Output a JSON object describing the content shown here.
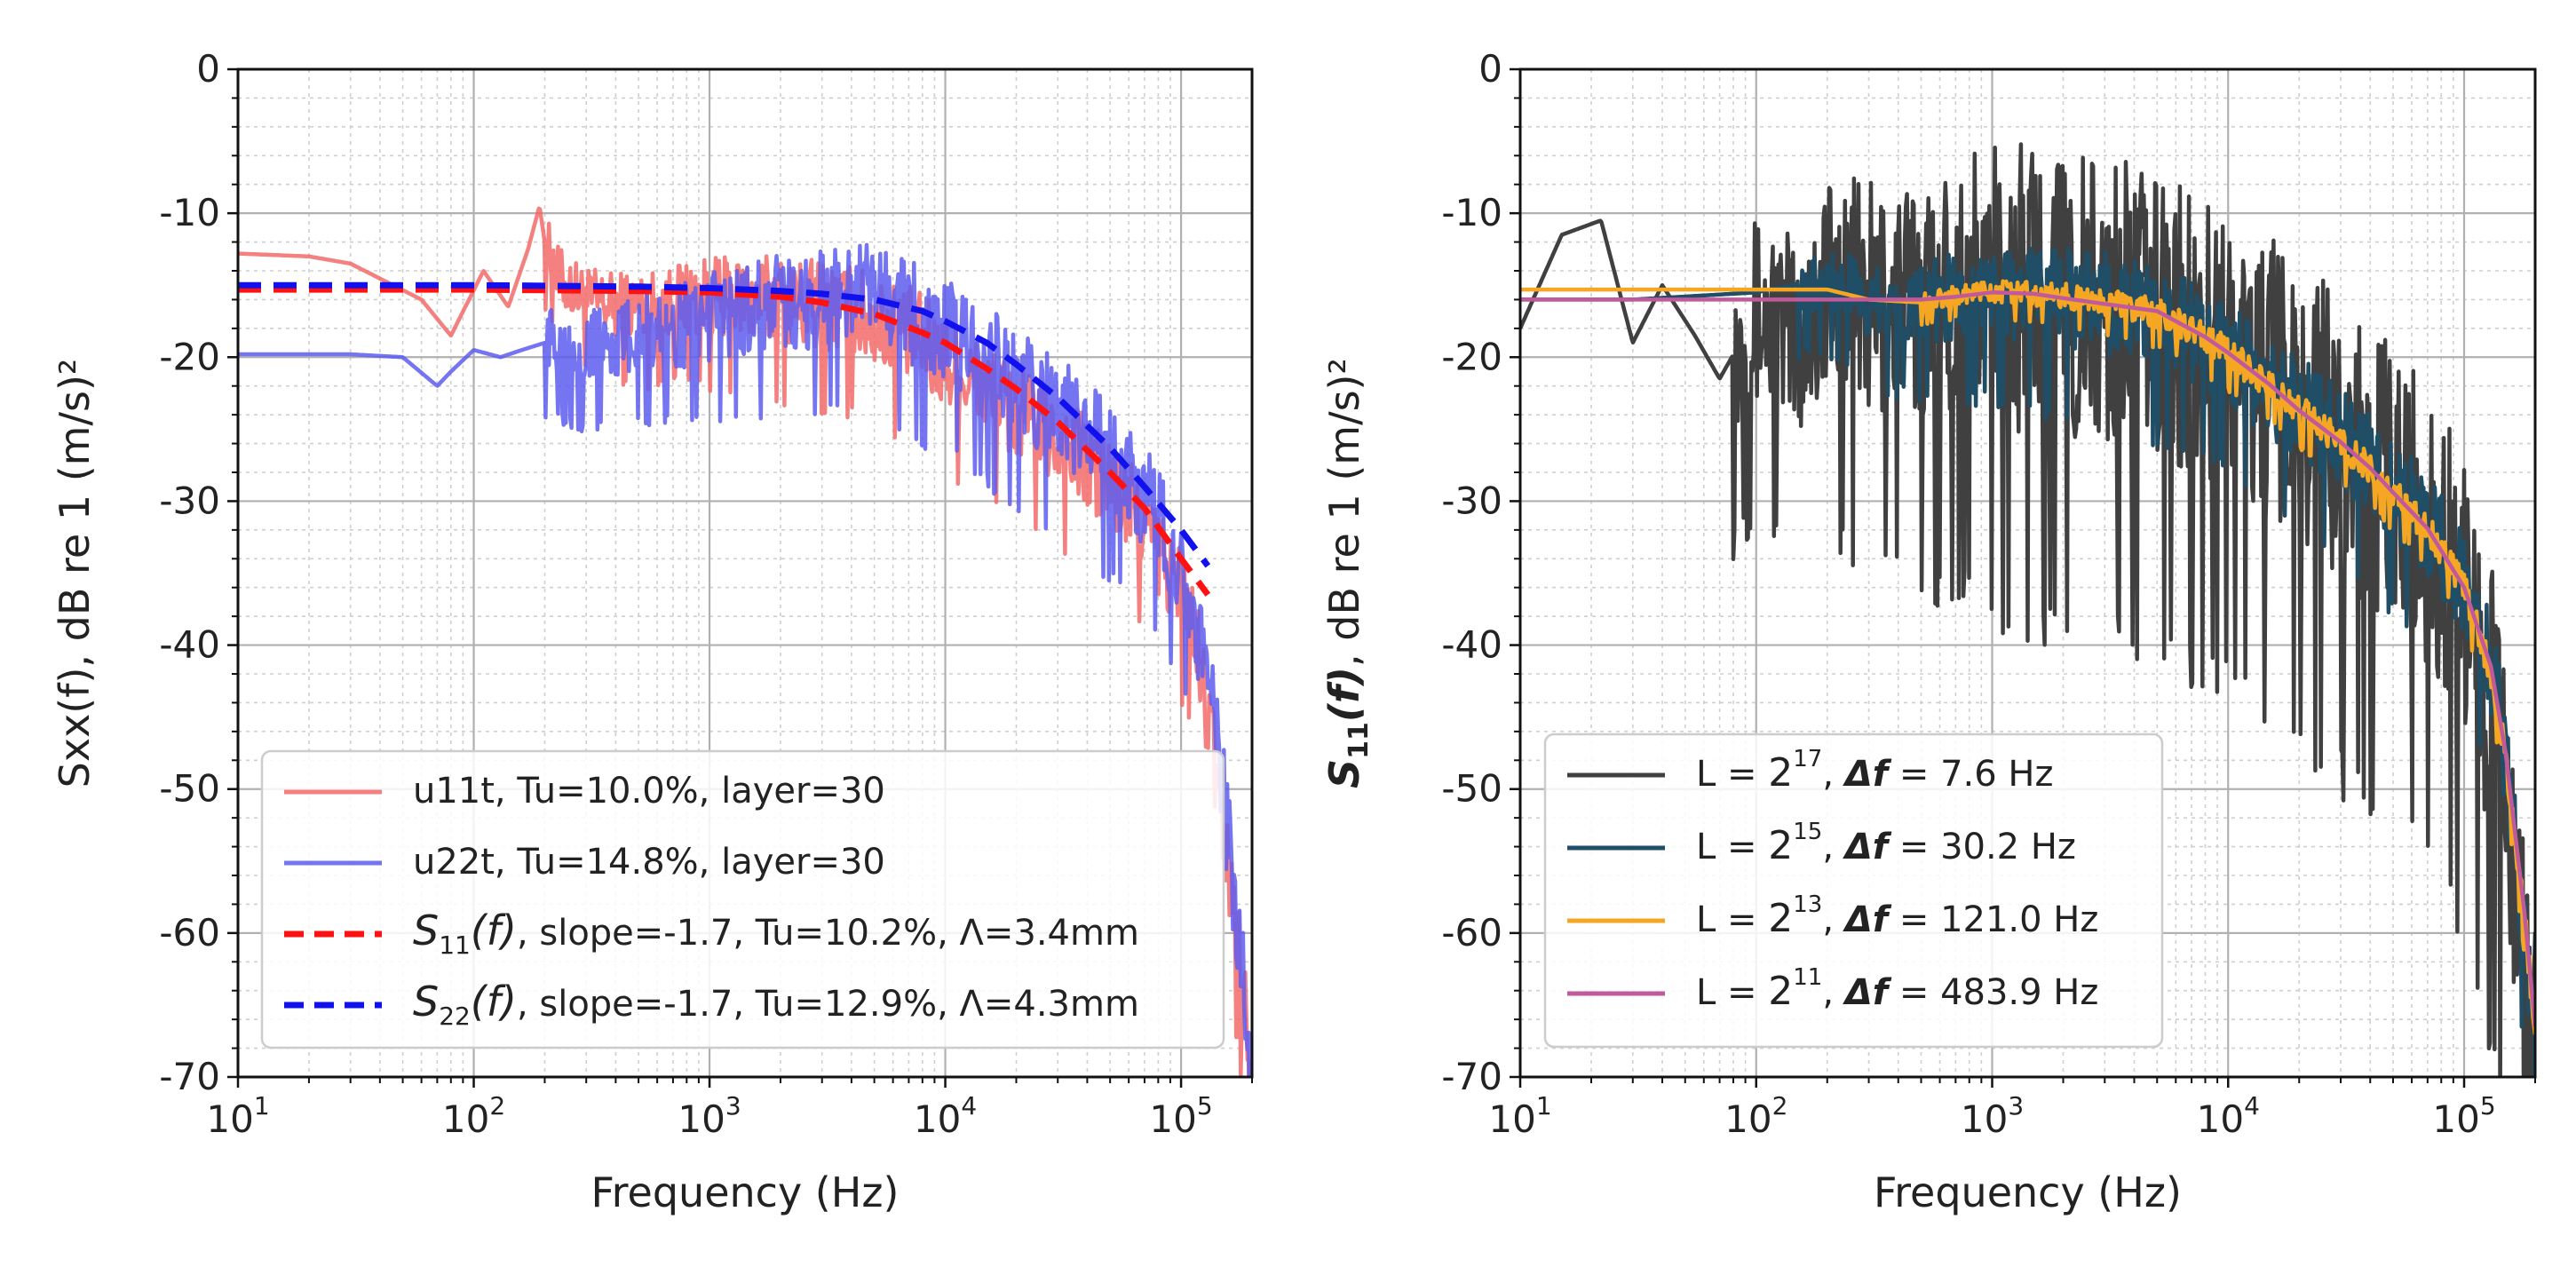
{
  "chart_data": [
    {
      "type": "line",
      "title": "",
      "xlabel": "Frequency (Hz)",
      "ylabel": "Sxx(f), dB re 1 (m/s)²",
      "xscale": "log",
      "xlim": [
        10,
        200000
      ],
      "ylim": [
        -70,
        0
      ],
      "grid": true,
      "legend_loc": "lower-left",
      "xticks": [
        10,
        100,
        1000,
        10000,
        100000
      ],
      "xticklabels": [
        [
          "10",
          "1"
        ],
        [
          "10",
          "2"
        ],
        [
          "10",
          "3"
        ],
        [
          "10",
          "4"
        ],
        [
          "10",
          "5"
        ]
      ],
      "yticks": [
        0,
        -10,
        -20,
        -30,
        -40,
        -50,
        -60,
        -70
      ],
      "yticklabels": [
        "0",
        "-10",
        "-20",
        "-30",
        "-40",
        "-50",
        "-60",
        "-70"
      ],
      "series": [
        {
          "name": "u11t, Tu=10.0%, layer=30",
          "legend_parts": [
            "u11t, Tu=10.0%, layer=30"
          ],
          "color": "#f26a6a",
          "opacity": 0.85,
          "dash": "solid",
          "kind": "noisy",
          "x": [
            10,
            20,
            30,
            60,
            80,
            110,
            140,
            170,
            190,
            200,
            230,
            300,
            400,
            600,
            800,
            1000,
            1500,
            2000,
            3000,
            4000,
            5000,
            6000,
            8000,
            10000,
            15000,
            20000,
            30000,
            40000,
            50000,
            60000,
            70000,
            80000,
            90000,
            100000,
            115000,
            130000,
            150000,
            180000,
            200000
          ],
          "values": [
            -12.8,
            -13.0,
            -13.5,
            -16.0,
            -18.5,
            -14.0,
            -16.5,
            -12.5,
            -9.5,
            -12.0,
            -14.5,
            -16.0,
            -16.5,
            -16.5,
            -16.0,
            -16.0,
            -16.0,
            -16.2,
            -16.5,
            -17.0,
            -17.5,
            -18.0,
            -19.0,
            -20.5,
            -22.5,
            -24.0,
            -26.0,
            -27.5,
            -29.0,
            -30.5,
            -32.0,
            -33.5,
            -35.0,
            -36.5,
            -40.0,
            -45.0,
            -52.0,
            -63.0,
            -70.0
          ],
          "noise_amp": 3.5,
          "noise_start": 200
        },
        {
          "name": "u22t, Tu=14.8%, layer=30",
          "legend_parts": [
            "u22t, Tu=14.8%, layer=30"
          ],
          "color": "#5d5df0",
          "opacity": 0.85,
          "dash": "solid",
          "kind": "noisy",
          "x": [
            10,
            30,
            50,
            70,
            80,
            100,
            130,
            160,
            200,
            300,
            400,
            600,
            800,
            1000,
            1500,
            2000,
            3000,
            3500,
            4000,
            5000,
            6000,
            8000,
            10000,
            15000,
            20000,
            30000,
            40000,
            50000,
            60000,
            70000,
            80000,
            90000,
            100000,
            115000,
            130000,
            150000,
            180000,
            200000
          ],
          "values": [
            -19.8,
            -19.8,
            -20.0,
            -22.0,
            -21.0,
            -19.5,
            -20.0,
            -19.5,
            -19.0,
            -19.5,
            -19.0,
            -18.5,
            -18.0,
            -17.5,
            -17.0,
            -16.5,
            -16.0,
            -15.8,
            -15.5,
            -16.0,
            -16.5,
            -17.5,
            -18.5,
            -20.5,
            -22.0,
            -24.0,
            -25.5,
            -27.0,
            -28.5,
            -30.0,
            -31.5,
            -33.0,
            -34.5,
            -38.0,
            -43.0,
            -50.0,
            -62.0,
            -70.0
          ],
          "noise_amp": 4.0,
          "noise_start": 200
        },
        {
          "name": "S11(f), slope=-1.7, Tu=10.2%, Λ=3.4mm",
          "legend_parts": [
            "S",
            "11",
            "(f)",
            ", slope=-1.7, Tu=10.2%, Λ=3.4mm"
          ],
          "color": "#ff1111",
          "opacity": 1.0,
          "dash": "dashed",
          "kind": "smooth",
          "x": [
            10,
            100,
            500,
            1000,
            2000,
            3000,
            5000,
            8000,
            10000,
            15000,
            20000,
            30000,
            50000,
            70000,
            100000,
            130000
          ],
          "values": [
            -15.3,
            -15.3,
            -15.4,
            -15.5,
            -15.8,
            -16.2,
            -17.0,
            -18.3,
            -19.0,
            -20.8,
            -22.2,
            -24.5,
            -28.0,
            -30.5,
            -34.0,
            -36.5
          ]
        },
        {
          "name": "S22(f), slope=-1.7, Tu=12.9%, Λ=4.3mm",
          "legend_parts": [
            "S",
            "22",
            "(f)",
            ", slope=-1.7, Tu=12.9%, Λ=4.3mm"
          ],
          "color": "#1111ee",
          "opacity": 1.0,
          "dash": "dashed",
          "kind": "smooth",
          "x": [
            10,
            100,
            500,
            1000,
            2000,
            3000,
            5000,
            8000,
            10000,
            15000,
            20000,
            30000,
            50000,
            70000,
            100000,
            130000
          ],
          "values": [
            -15.0,
            -15.0,
            -15.1,
            -15.2,
            -15.4,
            -15.6,
            -16.0,
            -16.8,
            -17.5,
            -19.0,
            -20.5,
            -22.8,
            -26.3,
            -29.0,
            -32.0,
            -34.5
          ]
        }
      ]
    },
    {
      "type": "line",
      "title": "",
      "xlabel": "Frequency (Hz)",
      "ylabel_parts": [
        "S",
        "11",
        "(f)",
        ", dB re 1 (m/s)²"
      ],
      "xscale": "log",
      "xlim": [
        10,
        200000
      ],
      "ylim": [
        -70,
        0
      ],
      "grid": true,
      "legend_loc": "lower-left",
      "xticks": [
        10,
        100,
        1000,
        10000,
        100000
      ],
      "xticklabels": [
        [
          "10",
          "1"
        ],
        [
          "10",
          "2"
        ],
        [
          "10",
          "3"
        ],
        [
          "10",
          "4"
        ],
        [
          "10",
          "5"
        ]
      ],
      "yticks": [
        0,
        -10,
        -20,
        -30,
        -40,
        -50,
        -60,
        -70
      ],
      "yticklabels": [
        "0",
        "-10",
        "-20",
        "-30",
        "-40",
        "-50",
        "-60",
        "-70"
      ],
      "series": [
        {
          "name": "L = 2^17, Δf = 7.6 Hz",
          "legend_parts": [
            "L = ",
            "2",
            "17",
            ", ",
            "Δf",
            " = 7.6 Hz"
          ],
          "color": "#404040",
          "opacity": 1.0,
          "dash": "solid",
          "kind": "noisy",
          "x": [
            10,
            15,
            22,
            30,
            40,
            55,
            70,
            100,
            150,
            200,
            300,
            500,
            700,
            1000,
            1500,
            2000,
            3000,
            4000,
            5000,
            6000,
            7000,
            8000,
            10000,
            15000,
            20000,
            30000,
            40000,
            50000,
            60000,
            70000,
            80000,
            90000,
            100000,
            115000,
            130000,
            150000,
            170000,
            200000
          ],
          "values": [
            -18.0,
            -11.5,
            -10.5,
            -19.0,
            -15.0,
            -18.5,
            -21.5,
            -17.0,
            -19.0,
            -15.0,
            -16.5,
            -16.5,
            -16.0,
            -16.0,
            -16.0,
            -16.5,
            -17.0,
            -17.5,
            -18.0,
            -18.5,
            -19.0,
            -19.5,
            -20.5,
            -22.5,
            -24.0,
            -26.5,
            -28.0,
            -30.0,
            -31.0,
            -32.5,
            -34.0,
            -35.5,
            -37.0,
            -40.0,
            -45.0,
            -52.0,
            -60.0,
            -68.0
          ],
          "noise_amp": 11.0,
          "noise_start": 80
        },
        {
          "name": "L = 2^15, Δf = 30.2 Hz",
          "legend_parts": [
            "L = ",
            "2",
            "15",
            ", ",
            "Δf",
            " = 30.2 Hz"
          ],
          "color": "#1f4e66",
          "opacity": 1.0,
          "dash": "solid",
          "kind": "noisy",
          "x": [
            10,
            30,
            100,
            200,
            300,
            500,
            700,
            1000,
            2000,
            3000,
            5000,
            8000,
            10000,
            15000,
            20000,
            30000,
            40000,
            50000,
            70000,
            100000,
            130000,
            150000,
            180000,
            200000
          ],
          "values": [
            -16.0,
            -16.0,
            -15.5,
            -14.5,
            -16.5,
            -16.5,
            -16.0,
            -16.0,
            -16.0,
            -16.5,
            -17.5,
            -19.0,
            -20.0,
            -22.5,
            -24.0,
            -26.0,
            -28.0,
            -29.5,
            -32.0,
            -36.0,
            -42.0,
            -48.0,
            -60.0,
            -68.0
          ],
          "noise_amp": 4.0,
          "noise_start": 150
        },
        {
          "name": "L = 2^13, Δf = 121.0 Hz",
          "legend_parts": [
            "L = ",
            "2",
            "13",
            ", ",
            "Δf",
            " = 121.0 Hz"
          ],
          "color": "#f5a623",
          "opacity": 1.0,
          "dash": "solid",
          "kind": "noisy",
          "x": [
            10,
            100,
            200,
            300,
            500,
            700,
            1000,
            2000,
            3000,
            5000,
            8000,
            10000,
            15000,
            20000,
            30000,
            40000,
            50000,
            70000,
            100000,
            130000,
            150000,
            180000,
            200000
          ],
          "values": [
            -15.3,
            -15.3,
            -15.3,
            -16.0,
            -16.2,
            -15.7,
            -15.5,
            -15.8,
            -16.3,
            -17.0,
            -18.8,
            -19.8,
            -22.0,
            -23.8,
            -26.0,
            -27.8,
            -29.5,
            -32.0,
            -36.0,
            -42.0,
            -48.0,
            -59.0,
            -67.0
          ],
          "noise_amp": 1.2,
          "noise_start": 500
        },
        {
          "name": "L = 2^11, Δf = 483.9 Hz",
          "legend_parts": [
            "L = ",
            "2",
            "11",
            ", ",
            "Δf",
            " = 483.9 Hz"
          ],
          "color": "#c05a9a",
          "opacity": 1.0,
          "dash": "solid",
          "kind": "smooth",
          "x": [
            10,
            100,
            300,
            500,
            700,
            1000,
            1500,
            2000,
            3000,
            5000,
            8000,
            10000,
            15000,
            20000,
            30000,
            40000,
            50000,
            70000,
            100000,
            130000,
            150000,
            180000,
            200000
          ],
          "values": [
            -16.0,
            -16.0,
            -16.0,
            -16.0,
            -15.8,
            -15.5,
            -15.6,
            -15.9,
            -16.3,
            -16.8,
            -18.6,
            -19.7,
            -21.9,
            -23.7,
            -25.9,
            -27.7,
            -29.4,
            -31.9,
            -36.0,
            -41.5,
            -47.5,
            -58.5,
            -66.5
          ]
        }
      ]
    }
  ]
}
